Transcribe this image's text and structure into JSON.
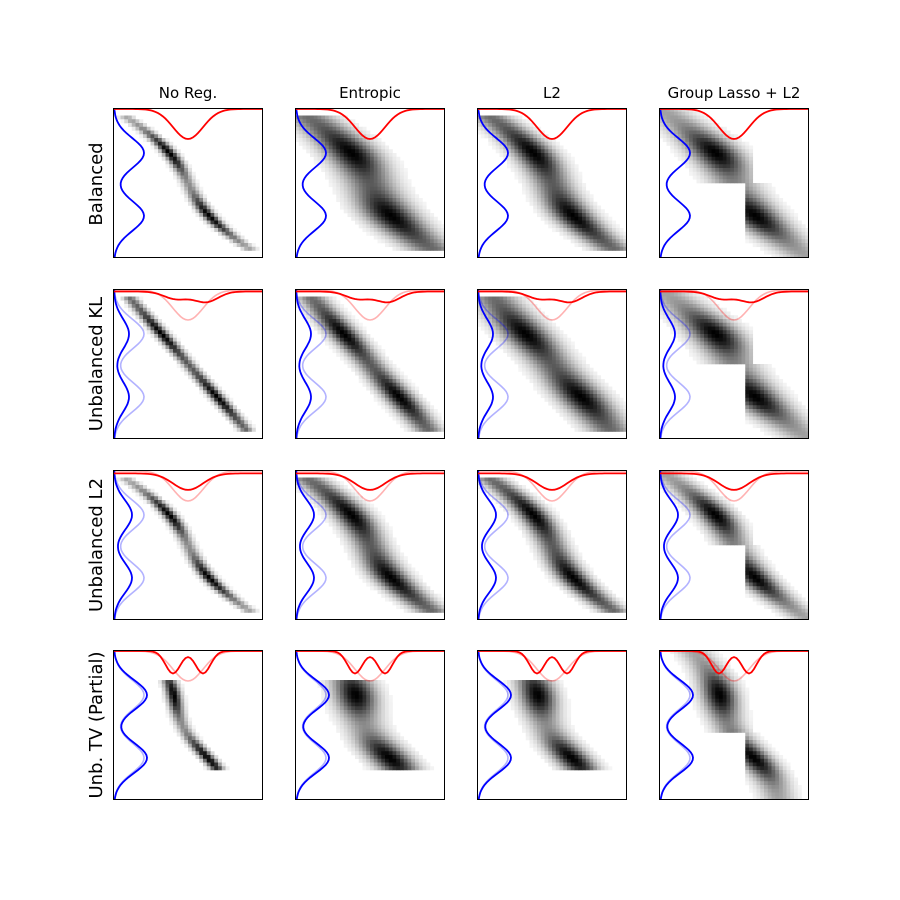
{
  "chart_data": {
    "type": "heatmap",
    "title": "",
    "columns": [
      "No Reg.",
      "Entropic",
      "L2",
      "Group Lasso + L2"
    ],
    "rows": [
      "Balanced",
      "Unbalanced KL",
      "Unbalanced L2",
      "Unb. TV (Partial)"
    ],
    "axes": {
      "xticks": false,
      "yticks": false
    },
    "source_marginal": {
      "color": "#0000ff",
      "position": "left",
      "modes": [
        0.3,
        0.7
      ]
    },
    "target_marginal": {
      "color": "#ff0000",
      "position": "top",
      "modes": [
        0.5
      ]
    },
    "reference_marginal_alpha": 0.3,
    "cmap": "gray_r",
    "panels": [
      {
        "row": "Balanced",
        "col": "No Reg.",
        "plan": "sharp",
        "spread": 0.01,
        "block": false,
        "src_scale": 1.0,
        "tgt_variant": "dip"
      },
      {
        "row": "Balanced",
        "col": "Entropic",
        "plan": "blur",
        "spread": 0.045,
        "block": false,
        "src_scale": 1.0,
        "tgt_variant": "dip"
      },
      {
        "row": "Balanced",
        "col": "L2",
        "plan": "blur",
        "spread": 0.035,
        "block": false,
        "src_scale": 1.0,
        "tgt_variant": "dip"
      },
      {
        "row": "Balanced",
        "col": "Group Lasso + L2",
        "plan": "block",
        "spread": 0.05,
        "block": true,
        "src_scale": 1.0,
        "tgt_variant": "dip"
      },
      {
        "row": "Unbalanced KL",
        "col": "No Reg.",
        "plan": "diag",
        "spread": 0.01,
        "block": false,
        "src_scale": 0.5,
        "tgt_variant": "flat"
      },
      {
        "row": "Unbalanced KL",
        "col": "Entropic",
        "plan": "diag",
        "spread": 0.025,
        "block": false,
        "src_scale": 0.5,
        "tgt_variant": "flat"
      },
      {
        "row": "Unbalanced KL",
        "col": "L2",
        "plan": "diag",
        "spread": 0.04,
        "block": false,
        "src_scale": 0.5,
        "tgt_variant": "flat"
      },
      {
        "row": "Unbalanced KL",
        "col": "Group Lasso + L2",
        "plan": "block",
        "spread": 0.05,
        "block": true,
        "src_scale": 0.5,
        "tgt_variant": "flat"
      },
      {
        "row": "Unbalanced L2",
        "col": "No Reg.",
        "plan": "sharp",
        "spread": 0.01,
        "block": false,
        "src_scale": 0.6,
        "tgt_variant": "shallow"
      },
      {
        "row": "Unbalanced L2",
        "col": "Entropic",
        "plan": "blur",
        "spread": 0.03,
        "block": false,
        "src_scale": 0.6,
        "tgt_variant": "shallow"
      },
      {
        "row": "Unbalanced L2",
        "col": "L2",
        "plan": "blur",
        "spread": 0.025,
        "block": false,
        "src_scale": 0.6,
        "tgt_variant": "shallow"
      },
      {
        "row": "Unbalanced L2",
        "col": "Group Lasso + L2",
        "plan": "block",
        "spread": 0.035,
        "block": true,
        "src_scale": 0.6,
        "tgt_variant": "shallow"
      },
      {
        "row": "Unb. TV (Partial)",
        "col": "No Reg.",
        "plan": "partial",
        "spread": 0.01,
        "block": false,
        "src_scale": 1.1,
        "tgt_variant": "double"
      },
      {
        "row": "Unb. TV (Partial)",
        "col": "Entropic",
        "plan": "partial",
        "spread": 0.035,
        "block": false,
        "src_scale": 1.1,
        "tgt_variant": "double"
      },
      {
        "row": "Unb. TV (Partial)",
        "col": "L2",
        "plan": "partial",
        "spread": 0.03,
        "block": false,
        "src_scale": 1.1,
        "tgt_variant": "double"
      },
      {
        "row": "Unb. TV (Partial)",
        "col": "Group Lasso + L2",
        "plan": "partialblock",
        "spread": 0.035,
        "block": true,
        "src_scale": 1.1,
        "tgt_variant": "double"
      }
    ]
  }
}
